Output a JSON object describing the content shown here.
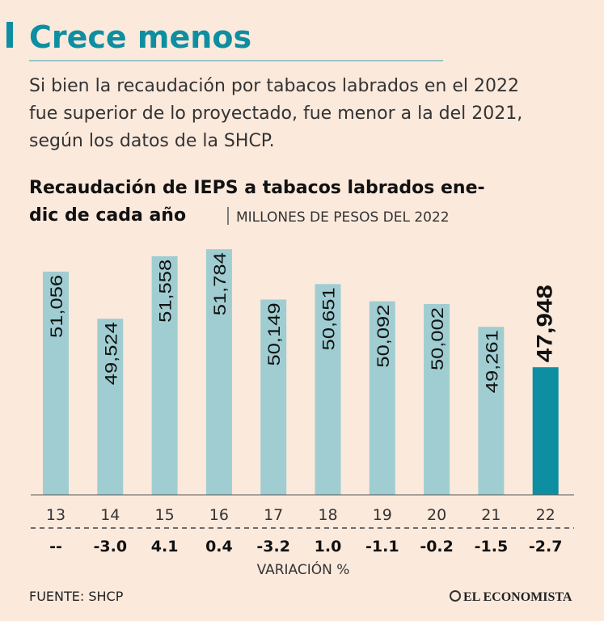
{
  "header": {
    "title": "Crece menos",
    "subtitle_lines": [
      "Si bien la recaudación por tabacos labrados en el 2022",
      "fue superior de lo proyectado, fue menor a la del 2021,",
      "según los datos de la SHCP."
    ]
  },
  "chart_data": {
    "type": "bar",
    "title_lines": [
      "Recaudación de IEPS a tabacos labrados ene-",
      "dic de cada año"
    ],
    "units": "MILLONES DE PESOS DEL 2022",
    "categories": [
      "13",
      "14",
      "15",
      "16",
      "17",
      "18",
      "19",
      "20",
      "21",
      "22"
    ],
    "values": [
      51056,
      49524,
      51558,
      51784,
      50149,
      50651,
      50092,
      50002,
      49261,
      47948
    ],
    "value_labels": [
      "51,056",
      "49,524",
      "51,558",
      "51,784",
      "50,149",
      "50,651",
      "50,092",
      "50,002",
      "49,261",
      "47,948"
    ],
    "colors": [
      "#9fcdd2",
      "#9fcdd2",
      "#9fcdd2",
      "#9fcdd2",
      "#9fcdd2",
      "#9fcdd2",
      "#9fcdd2",
      "#9fcdd2",
      "#9fcdd2",
      "#0e8ea1"
    ],
    "ylim": [
      43800,
      52000
    ],
    "variation": {
      "label": "VARIACIÓN %",
      "values": [
        null,
        -3.0,
        4.1,
        0.4,
        -3.2,
        1.0,
        -1.1,
        -0.2,
        -1.5,
        -2.7
      ],
      "value_labels": [
        "--",
        "-3.0",
        "4.1",
        "0.4",
        "-3.2",
        "1.0",
        "-1.1",
        "-0.2",
        "-1.5",
        "-2.7"
      ]
    }
  },
  "footer": {
    "source": "FUENTE: SHCP",
    "logo": "EL ECONOMISTA"
  }
}
